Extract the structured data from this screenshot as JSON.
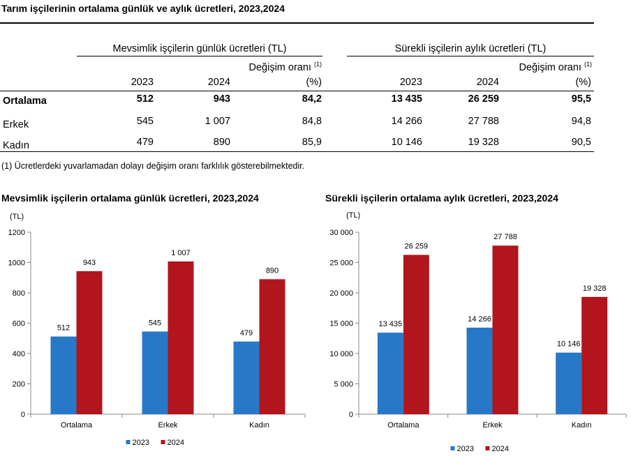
{
  "page_title": "Tarım işçilerinin ortalama günlük ve aylık ücretleri, 2023,2024",
  "table": {
    "group1_header": "Mevsimlik işçilerin günlük ücretleri (TL)",
    "group2_header": "Sürekli işçilerin aylık ücretleri (TL)",
    "change_label": "Değişim oranı",
    "note_mark": "(1)",
    "year1": "2023",
    "year2": "2024",
    "pct_label": "(%)",
    "rows": [
      {
        "label": "Ortalama",
        "s2023": "512",
        "s2024": "943",
        "schange": "84,2",
        "p2023": "13 435",
        "p2024": "26 259",
        "pchange": "95,5"
      },
      {
        "label": "Erkek",
        "s2023": "545",
        "s2024": "1 007",
        "schange": "84,8",
        "p2023": "14 266",
        "p2024": "27 788",
        "pchange": "94,8"
      },
      {
        "label": "Kadın",
        "s2023": "479",
        "s2024": "890",
        "schange": "85,9",
        "p2023": "10 146",
        "p2024": "19 328",
        "pchange": "90,5"
      }
    ],
    "footnote": "(1) Ücretlerdeki yuvarlamadan dolayı değişim oranı farklılık gösterebilmektedir."
  },
  "chart_data": [
    {
      "type": "bar",
      "title": "Mevsimlik işçilerin ortalama günlük ücretleri, 2023,2024",
      "ylabel": "(TL)",
      "xlabel": "",
      "categories": [
        "Ortalama",
        "Erkek",
        "Kadın"
      ],
      "series": [
        {
          "name": "2023",
          "values": [
            512,
            545,
            479
          ],
          "labels": [
            "512",
            "545",
            "479"
          ],
          "color": "#2878C8"
        },
        {
          "name": "2024",
          "values": [
            943,
            1007,
            890
          ],
          "labels": [
            "943",
            "1 007",
            "890"
          ],
          "color": "#B2151C"
        }
      ],
      "ylim": [
        0,
        1200
      ],
      "yticks": [
        0,
        200,
        400,
        600,
        800,
        1000,
        1200
      ],
      "ytick_labels": [
        "0",
        "200",
        "400",
        "600",
        "800",
        "1000",
        "1200"
      ],
      "grid": false,
      "legend": "bottom-center"
    },
    {
      "type": "bar",
      "title": "Sürekli işçilerin ortalama aylık ücretleri, 2023,2024",
      "ylabel": "(TL)",
      "xlabel": "",
      "categories": [
        "Ortalama",
        "Erkek",
        "Kadın"
      ],
      "series": [
        {
          "name": "2023",
          "values": [
            13435,
            14266,
            10146
          ],
          "labels": [
            "13 435",
            "14 266",
            "10 146"
          ],
          "color": "#2878C8"
        },
        {
          "name": "2024",
          "values": [
            26259,
            27788,
            19328
          ],
          "labels": [
            "26 259",
            "27 788",
            "19 328"
          ],
          "color": "#B2151C"
        }
      ],
      "ylim": [
        0,
        30000
      ],
      "yticks": [
        0,
        5000,
        10000,
        15000,
        20000,
        25000,
        30000
      ],
      "ytick_labels": [
        "0",
        "5 000",
        "10 000",
        "15 000",
        "20 000",
        "25 000",
        "30 000"
      ],
      "grid": false,
      "legend": "bottom-center"
    }
  ]
}
